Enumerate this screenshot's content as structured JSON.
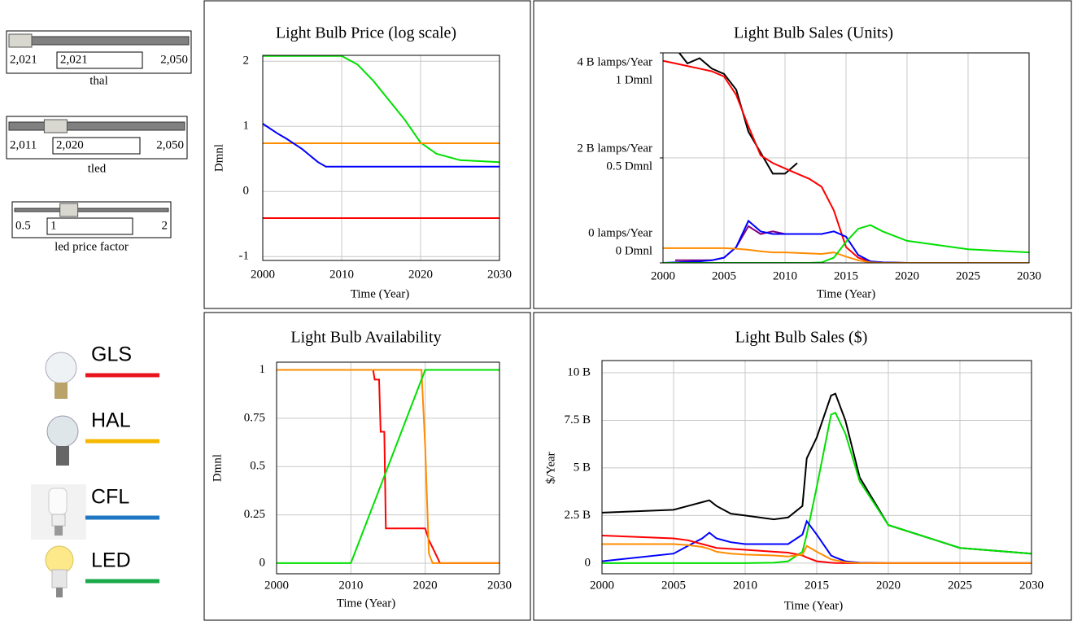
{
  "sliders": [
    {
      "label": "thal",
      "min": {
        "value": 2021,
        "label": "2,021"
      },
      "value": {
        "value": 2021,
        "label": "2,021"
      },
      "max": {
        "value": 2050,
        "label": "2,050"
      }
    },
    {
      "label": "tled",
      "min": {
        "value": 2011,
        "label": "2,011"
      },
      "value": {
        "value": 2020,
        "label": "2,020"
      },
      "max": {
        "value": 2050,
        "label": "2,050"
      }
    },
    {
      "label": "led price factor",
      "min": 0.5,
      "value": 1,
      "max": 2
    }
  ],
  "legend": [
    {
      "label": "GLS",
      "color": "#e8141b"
    },
    {
      "label": "HAL",
      "color": "#f5b800"
    },
    {
      "label": "CFL",
      "color": "#1f77c4"
    },
    {
      "label": "LED",
      "color": "#1aaa4a"
    }
  ],
  "chart_data": [
    {
      "type": "line",
      "title": "Light Bulb Price (log scale)",
      "y_label": "Dmnl",
      "x_label": "Time (Year)",
      "grid": true,
      "xlim": [
        2000,
        2030
      ],
      "xticks": [
        2000,
        2010,
        2020,
        2030
      ],
      "ylim": [
        -1.06,
        2.09
      ],
      "yticks": [
        2,
        1,
        0,
        -1
      ],
      "x": [
        2000,
        2002,
        2003,
        2005,
        2007,
        2008,
        2010,
        2012,
        2014,
        2016,
        2018,
        2020,
        2022,
        2025,
        2030
      ],
      "series": [
        {
          "color": "#00e000",
          "values": [
            2.08,
            2.08,
            2.08,
            2.08,
            2.08,
            2.08,
            2.08,
            1.95,
            1.7,
            1.4,
            1.1,
            0.75,
            0.58,
            0.48,
            0.45
          ]
        },
        {
          "color": "#ff8c00",
          "values": [
            0.74,
            0.74,
            0.74,
            0.74,
            0.74,
            0.74,
            0.74,
            0.74,
            0.74,
            0.74,
            0.74,
            0.74,
            0.74,
            0.74,
            0.74
          ]
        },
        {
          "color": "#0000ff",
          "values": [
            1.04,
            0.88,
            0.81,
            0.65,
            0.45,
            0.38,
            0.38,
            0.38,
            0.38,
            0.38,
            0.38,
            0.38,
            0.38,
            0.38,
            0.38
          ]
        },
        {
          "color": "#ff0000",
          "values": [
            -0.41,
            -0.41,
            -0.41,
            -0.41,
            -0.41,
            -0.41,
            -0.41,
            -0.41,
            -0.41,
            -0.41,
            -0.41,
            -0.41,
            -0.41,
            -0.41,
            -0.41
          ]
        }
      ]
    },
    {
      "type": "line",
      "title": "Light Bulb Sales (Units)",
      "x_label": "Time (Year)",
      "grid": true,
      "xlim": [
        2000,
        2030
      ],
      "xticks": [
        2000,
        2005,
        2010,
        2015,
        2020,
        2025,
        2030
      ],
      "ylim": [
        0,
        4000000000.0
      ],
      "yticks": [
        {
          "value": 4000000000.0,
          "label": "4 B  lamps/Year"
        },
        {
          "value": 2000000000.0,
          "label": "2 B  lamps/Year"
        },
        {
          "value": 0,
          "label": "0  lamps/Year"
        }
      ],
      "y2lim": [
        0,
        1
      ],
      "y2ticks": [
        {
          "value": 1,
          "label": "1  Dmnl"
        },
        {
          "value": 0.5,
          "label": "0.5  Dmnl"
        },
        {
          "value": 0,
          "label": "0  Dmnl"
        }
      ],
      "x": [
        2000,
        2001,
        2002,
        2003,
        2004,
        2005,
        2006,
        2007,
        2008,
        2009,
        2010,
        2011,
        2012,
        2013,
        2014,
        2015,
        2016,
        2017,
        2018,
        2020,
        2025,
        2030
      ],
      "series": [
        {
          "color": "#000000",
          "values": [
            null,
            4100000000.0,
            3800000000.0,
            3900000000.0,
            3700000000.0,
            3600000000.0,
            3300000000.0,
            2500000000.0,
            2100000000.0,
            1700000000.0,
            1700000000.0,
            1900000000.0,
            null,
            null,
            null,
            null,
            null,
            null,
            null,
            null,
            null,
            null
          ]
        },
        {
          "color": "#ff0000",
          "values": [
            3850000000.0,
            3800000000.0,
            3750000000.0,
            3700000000.0,
            3650000000.0,
            3550000000.0,
            3200000000.0,
            2600000000.0,
            2050000000.0,
            1900000000.0,
            1800000000.0,
            1700000000.0,
            1600000000.0,
            1450000000.0,
            1000000000.0,
            300000000.0,
            100000000.0,
            20000000.0,
            10000000.0,
            0,
            0,
            0
          ]
        },
        {
          "color": "#800080",
          "values": [
            null,
            50000000.0,
            50000000.0,
            50000000.0,
            50000000.0,
            100000000.0,
            300000000.0,
            700000000.0,
            550000000.0,
            600000000.0,
            550000000.0,
            null,
            null,
            null,
            null,
            null,
            null,
            null,
            null,
            null,
            null,
            null
          ]
        },
        {
          "color": "#0000ff",
          "values": [
            0,
            10000000.0,
            20000000.0,
            30000000.0,
            50000000.0,
            100000000.0,
            300000000.0,
            800000000.0,
            600000000.0,
            550000000.0,
            550000000.0,
            550000000.0,
            550000000.0,
            550000000.0,
            600000000.0,
            500000000.0,
            150000000.0,
            30000000.0,
            10000000.0,
            0,
            0,
            0
          ]
        },
        {
          "color": "#ff8c00",
          "values": [
            280000000.0,
            280000000.0,
            280000000.0,
            280000000.0,
            280000000.0,
            280000000.0,
            270000000.0,
            250000000.0,
            220000000.0,
            200000000.0,
            200000000.0,
            190000000.0,
            180000000.0,
            170000000.0,
            200000000.0,
            120000000.0,
            50000000.0,
            10000000.0,
            0,
            0,
            0,
            0
          ]
        },
        {
          "color": "#00e000",
          "values": [
            0,
            0,
            0,
            0,
            0,
            0,
            0,
            0,
            0,
            0,
            0,
            0,
            0,
            10000000.0,
            100000000.0,
            400000000.0,
            650000000.0,
            720000000.0,
            600000000.0,
            420000000.0,
            260000000.0,
            200000000.0
          ]
        }
      ]
    },
    {
      "type": "line",
      "title": "Light Bulb Availability",
      "y_label": "Dmnl",
      "x_label": "Time (Year)",
      "grid": true,
      "xlim": [
        2000,
        2030
      ],
      "xticks": [
        2000,
        2010,
        2020,
        2030
      ],
      "ylim": [
        -0.055,
        1.04
      ],
      "yticks": [
        1,
        0.75,
        0.5,
        0.25,
        0
      ],
      "x": [
        2000,
        2010,
        2013,
        2013.2,
        2013.8,
        2014,
        2014.5,
        2014.7,
        2019.5,
        2020,
        2020.5,
        2021,
        2022,
        2030
      ],
      "series": [
        {
          "color": "#ff0000",
          "values": [
            1,
            1,
            1,
            0.95,
            0.95,
            0.68,
            0.68,
            0.18,
            0.18,
            0.18,
            0.12,
            0.08,
            0,
            0
          ]
        },
        {
          "color": "#ff8c00",
          "values": [
            1,
            1,
            1,
            1,
            1,
            1,
            1,
            1,
            1,
            0.6,
            0.05,
            0,
            0,
            0
          ]
        },
        {
          "color": "#00e000",
          "values": [
            0,
            0,
            0.3,
            0.32,
            0.38,
            0.4,
            0.45,
            0.47,
            0.95,
            1,
            1,
            1,
            1,
            1
          ]
        }
      ]
    },
    {
      "type": "line",
      "title": "Light Bulb Sales ($)",
      "y_label": "$/Year",
      "x_label": "Time (Year)",
      "grid": true,
      "xlim": [
        2000,
        2030
      ],
      "xticks": [
        2000,
        2005,
        2010,
        2015,
        2020,
        2025,
        2030
      ],
      "ylim": [
        -560000000.0,
        10640000000.0
      ],
      "yticks": [
        {
          "value": 10000000000.0,
          "label": "10 B"
        },
        {
          "value": 7500000000.0,
          "label": "7.5 B"
        },
        {
          "value": 5000000000.0,
          "label": "5 B"
        },
        {
          "value": 2500000000.0,
          "label": "2.5 B"
        },
        0
      ],
      "x": [
        2000,
        2005,
        2006,
        2007,
        2007.5,
        2008,
        2009,
        2010,
        2012,
        2013,
        2014,
        2014.3,
        2015,
        2016,
        2016.3,
        2017,
        2018,
        2020,
        2025,
        2030
      ],
      "series": [
        {
          "color": "#000000",
          "values": [
            2650000000.0,
            2800000000.0,
            3000000000.0,
            3200000000.0,
            3300000000.0,
            3000000000.0,
            2600000000.0,
            2500000000.0,
            2300000000.0,
            2400000000.0,
            3000000000.0,
            5500000000.0,
            6600000000.0,
            8800000000.0,
            8900000000.0,
            7500000000.0,
            4500000000.0,
            2000000000.0,
            800000000.0,
            500000000.0
          ]
        },
        {
          "color": "#00e000",
          "values": [
            0,
            0,
            0,
            0,
            0,
            0,
            0,
            0,
            20000000.0,
            100000000.0,
            600000000.0,
            1500000000.0,
            4000000000.0,
            7800000000.0,
            7900000000.0,
            6800000000.0,
            4300000000.0,
            2000000000.0,
            800000000.0,
            500000000.0
          ]
        },
        {
          "color": "#0000ff",
          "values": [
            100000000.0,
            500000000.0,
            900000000.0,
            1300000000.0,
            1600000000.0,
            1300000000.0,
            1100000000.0,
            1000000000.0,
            1000000000.0,
            1000000000.0,
            1500000000.0,
            2200000000.0,
            1500000000.0,
            400000000.0,
            300000000.0,
            100000000.0,
            20000000.0,
            0,
            0,
            0
          ]
        },
        {
          "color": "#ff0000",
          "values": [
            1450000000.0,
            1300000000.0,
            1200000000.0,
            1000000000.0,
            900000000.0,
            800000000.0,
            750000000.0,
            700000000.0,
            600000000.0,
            550000000.0,
            400000000.0,
            300000000.0,
            100000000.0,
            20000000.0,
            10000000.0,
            0,
            0,
            0,
            0,
            0
          ]
        },
        {
          "color": "#ff8c00",
          "values": [
            1000000000.0,
            1000000000.0,
            950000000.0,
            850000000.0,
            750000000.0,
            600000000.0,
            500000000.0,
            450000000.0,
            400000000.0,
            350000000.0,
            450000000.0,
            900000000.0,
            600000000.0,
            200000000.0,
            150000000.0,
            50000000.0,
            0,
            0,
            0,
            0
          ]
        }
      ]
    }
  ]
}
